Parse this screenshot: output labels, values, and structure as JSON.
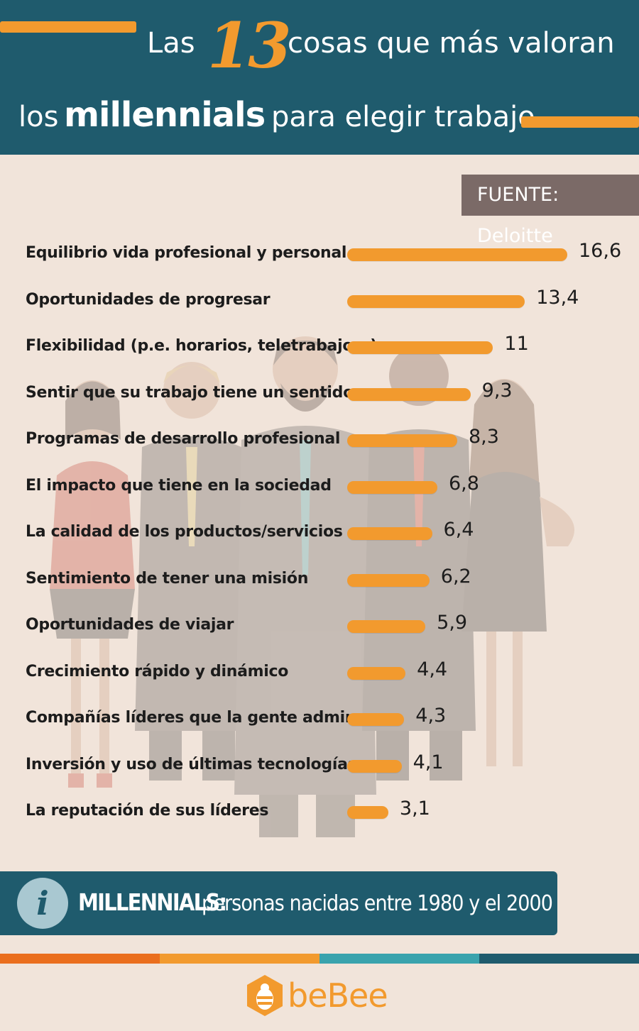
{
  "header": {
    "title_part1": "Las",
    "title_number": "13",
    "title_part2": "cosas que más valoran",
    "title_part3": "los",
    "title_part4": "millennials",
    "title_part5": "para elegir trabajo"
  },
  "source": "FUENTE: Deloitte",
  "chart_data": {
    "type": "bar",
    "orientation": "horizontal",
    "categories": [
      "Equilibrio vida profesional y personal",
      "Oportunidades de progresar",
      "Flexibilidad (p.e. horarios, teletrabajo...)",
      "Sentir que su trabajo tiene un sentido",
      "Programas de desarrollo profesional",
      "El impacto que tiene en la sociedad",
      "La calidad de los productos/servicios",
      "Sentimiento de tener una misión",
      "Oportunidades de viajar",
      "Crecimiento rápido y dinámico",
      "Compañías líderes que la gente admira",
      "Inversión y uso de últimas tecnologías",
      "La reputación de sus líderes"
    ],
    "values": [
      16.6,
      13.4,
      11,
      9.3,
      8.3,
      6.8,
      6.4,
      6.2,
      5.9,
      4.4,
      4.3,
      4.1,
      3.1
    ],
    "value_labels": [
      "16,6",
      "13,4",
      "11",
      "9,3",
      "8,3",
      "6,8",
      "6,4",
      "6,2",
      "5,9",
      "4,4",
      "4,3",
      "4,1",
      "3,1"
    ],
    "bar_color": "#f29a2e",
    "grid": false
  },
  "info": {
    "icon": "info-icon",
    "term": "MILLENNIALS:",
    "definition": "personas nacidas entre 1980 y el 2000"
  },
  "strip_colors": [
    "#ea6e1d",
    "#f29a2e",
    "#3aa3ad",
    "#1f5b6d"
  ],
  "logo": {
    "text": "beBee",
    "icon": "bee-hexagon-icon"
  },
  "colors": {
    "header_bg": "#1f5b6d",
    "accent": "#f29a2e",
    "page_bg": "#f1e4da",
    "source_bg": "#7b6a67"
  }
}
